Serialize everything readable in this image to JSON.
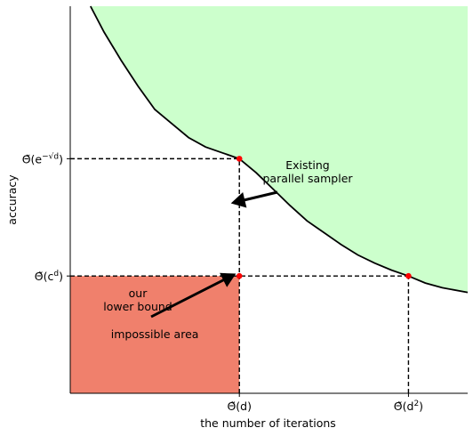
{
  "chart_data": {
    "type": "area",
    "xlabel": "the number of iterations",
    "ylabel": "accuracy",
    "x_ticks": [
      {
        "base": "Θ̃(d)",
        "sup": "",
        "x": 1
      },
      {
        "base": "Θ̃(d",
        "sup": "2",
        "after": ")",
        "x": 2
      }
    ],
    "y_ticks": [
      {
        "base": "Θ̃(c",
        "sup": "d",
        "after": ")",
        "y": 1
      },
      {
        "base": "Θ̃(e",
        "sup": "−√d",
        "after": ")",
        "y": 2
      }
    ],
    "xlim": [
      0,
      2.35
    ],
    "ylim": [
      0,
      3.3
    ],
    "frontier_curve": {
      "x": [
        0.12,
        0.2,
        0.3,
        0.4,
        0.5,
        0.6,
        0.7,
        0.8,
        0.9,
        1.0,
        1.1,
        1.2,
        1.3,
        1.4,
        1.5,
        1.6,
        1.7,
        1.8,
        1.9,
        2.0,
        2.1,
        2.2,
        2.35
      ],
      "y": [
        3.3,
        3.08,
        2.84,
        2.62,
        2.42,
        2.3,
        2.18,
        2.1,
        2.05,
        2.0,
        1.88,
        1.74,
        1.6,
        1.47,
        1.37,
        1.27,
        1.18,
        1.11,
        1.05,
        1.0,
        0.94,
        0.9,
        0.86
      ],
      "color": "#000000"
    },
    "achievable_region": {
      "color": "#ccffcc"
    },
    "impossible_region": {
      "x": [
        0,
        1
      ],
      "y": [
        0,
        1
      ],
      "label": "impossible area",
      "color": "#f0806c"
    },
    "points": [
      {
        "x": 1,
        "y": 2
      },
      {
        "x": 1,
        "y": 1
      },
      {
        "x": 2,
        "y": 1
      }
    ],
    "point_color": "#ff0000",
    "guide_lines": [
      {
        "from": [
          0,
          2
        ],
        "to": [
          1,
          2
        ]
      },
      {
        "from": [
          1,
          0
        ],
        "to": [
          1,
          2
        ]
      },
      {
        "from": [
          0,
          1
        ],
        "to": [
          2,
          1
        ]
      },
      {
        "from": [
          2,
          0
        ],
        "to": [
          2,
          1
        ]
      }
    ],
    "annotations": [
      {
        "lines": [
          "Existing",
          "parallel sampler"
        ],
        "points_to": [
          0.95,
          1.62
        ]
      },
      {
        "lines": [
          "our",
          "lower bound"
        ],
        "points_to": [
          0.98,
          1.02
        ]
      }
    ]
  }
}
